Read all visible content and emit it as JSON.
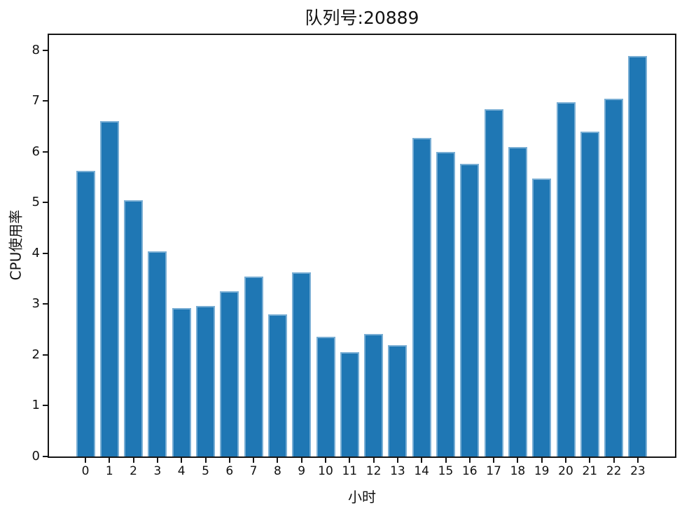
{
  "chart_data": {
    "type": "bar",
    "title": "队列号:20889",
    "xlabel": "小时",
    "ylabel": "CPU使用率",
    "categories": [
      "0",
      "1",
      "2",
      "3",
      "4",
      "5",
      "6",
      "7",
      "8",
      "9",
      "10",
      "11",
      "12",
      "13",
      "14",
      "15",
      "16",
      "17",
      "18",
      "19",
      "20",
      "21",
      "22",
      "23"
    ],
    "values": [
      5.63,
      6.6,
      5.04,
      4.04,
      2.93,
      2.97,
      3.25,
      3.55,
      2.8,
      3.63,
      2.36,
      2.06,
      2.41,
      2.19,
      6.27,
      6.0,
      5.77,
      6.84,
      6.1,
      5.48,
      6.98,
      6.4,
      7.05,
      7.88
    ],
    "ylim": [
      0,
      8.3
    ],
    "yticks": [
      0,
      1,
      2,
      3,
      4,
      5,
      6,
      7,
      8
    ],
    "grid": false,
    "legend_position": "none",
    "bar_color": "#1f77b4",
    "bar_edge_color": "#79aed4",
    "axis_color": "#151515",
    "text_color": "#111111",
    "background_color": "#ffffff"
  }
}
